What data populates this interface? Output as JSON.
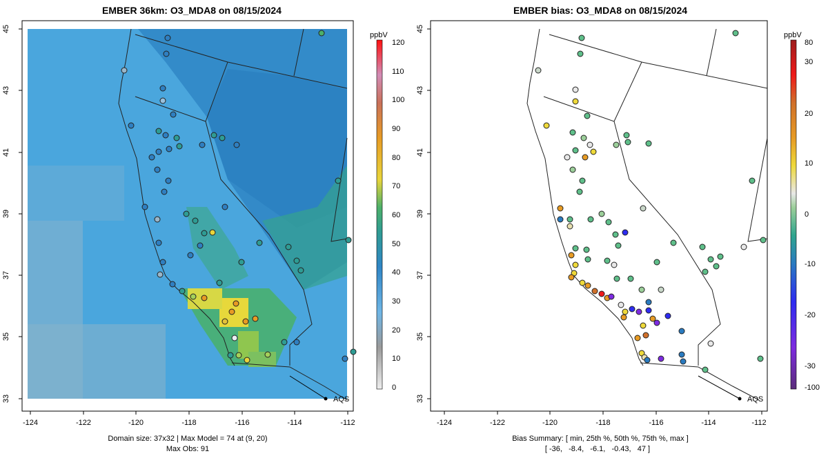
{
  "left_panel": {
    "title": "EMBER 36km: O3_MDA8 on 08/15/2024",
    "colorbar_unit": "ppbV",
    "colorbar_ticks": [
      "120",
      "110",
      "100",
      "90",
      "80",
      "70",
      "60",
      "50",
      "40",
      "30",
      "20",
      "10",
      "0"
    ],
    "footer_line1": "Domain size: 37x32 | Max Model = 74 at (9, 20)",
    "footer_line2": "Max Obs: 91",
    "legend_label": "AQS"
  },
  "right_panel": {
    "title": "EMBER bias: O3_MDA8 on 08/15/2024",
    "colorbar_unit": "ppbV",
    "colorbar_ticks": [
      "80",
      "30",
      "20",
      "10",
      "0",
      "-10",
      "-20",
      "-30",
      "-100"
    ],
    "footer_line1": "Bias Summary: [ min, 25th %, 50th %, 75th %, max ]",
    "footer_line2": "[ -36,   -8.4,   -6.1,   -0.43,   47 ]",
    "legend_label": "AQS"
  },
  "axes": {
    "x_ticks": [
      "-124",
      "-122",
      "-120",
      "-118",
      "-116",
      "-114",
      "-112"
    ],
    "y_ticks": [
      "33",
      "35",
      "37",
      "39",
      "41",
      "43",
      "45"
    ]
  },
  "colors": {
    "left_background": "#4aa6dd",
    "state_lines": "#222222",
    "high_ozone": "#f0d63a",
    "bias_negative": "#5fbf8a",
    "bias_positive": "#e08a1e"
  }
}
